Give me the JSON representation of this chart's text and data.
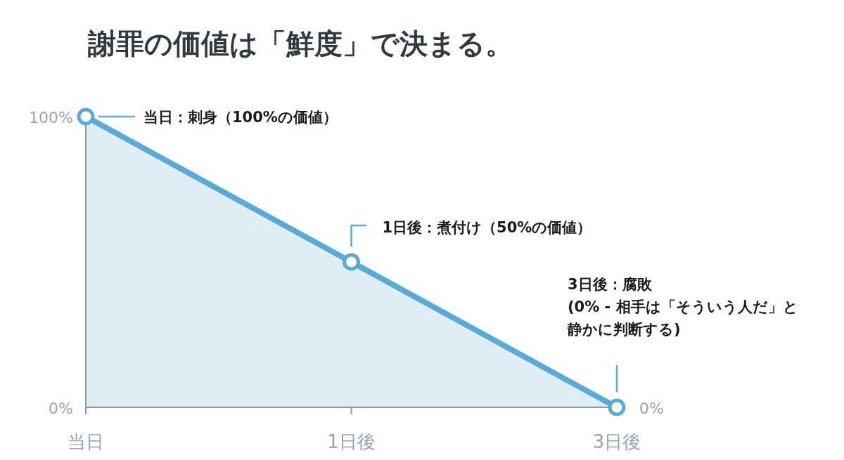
{
  "chart_data": {
    "type": "area",
    "title": "謝罪の価値は「鮮度」で決まる。",
    "categories": [
      "当日",
      "1日後",
      "3日後"
    ],
    "series": [
      {
        "color": "#5aa9d6",
        "values": [
          100,
          50,
          0
        ]
      }
    ],
    "ylim": [
      0,
      100
    ],
    "yticks": [
      {
        "value": 0,
        "label": "0%"
      },
      {
        "value": 100,
        "label": "100%"
      }
    ],
    "marker": "circle",
    "grid": false,
    "annotations": [
      "当日：刺身（100%の価値）",
      "1日後：煮付け（50%の価値）",
      "3日後：腐敗\n(0% - 相手は「そういう人だ」と静かに判断する)",
      "0%"
    ]
  }
}
